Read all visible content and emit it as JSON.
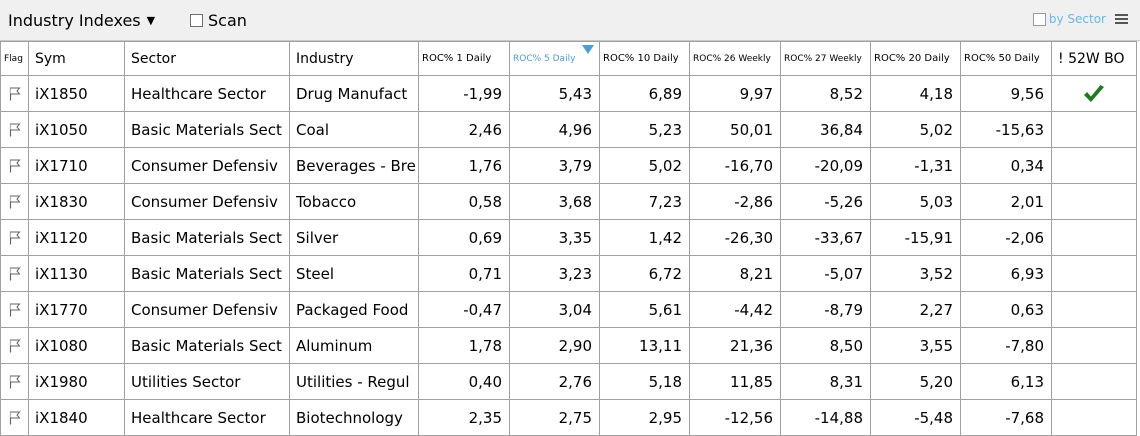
{
  "toolbar": {
    "list_name": "Industry Indexes",
    "scan_label": "Scan",
    "by_sector_label": "by Sector",
    "icons": {
      "dropdown": "caret-down-icon",
      "menu": "hamburger-menu-icon"
    }
  },
  "table": {
    "columns": [
      {
        "key": "flag",
        "label": "Flag"
      },
      {
        "key": "sym",
        "label": "Sym"
      },
      {
        "key": "sector",
        "label": "Sector"
      },
      {
        "key": "industry",
        "label": "Industry"
      },
      {
        "key": "roc1d",
        "label": "ROC% 1 Daily"
      },
      {
        "key": "roc5d",
        "label": "ROC% 5 Daily",
        "sorted": "desc"
      },
      {
        "key": "roc10d",
        "label": "ROC% 10 Daily"
      },
      {
        "key": "roc26w",
        "label": "ROC% 26 Weekly"
      },
      {
        "key": "roc27w",
        "label": "ROC% 27 Weekly"
      },
      {
        "key": "roc20d",
        "label": "ROC% 20 Daily"
      },
      {
        "key": "roc50d",
        "label": "ROC% 50 Daily"
      },
      {
        "key": "bo52w",
        "label": "! 52W BO"
      }
    ],
    "rows": [
      {
        "sym": "iX1850",
        "sector": "Healthcare Sector",
        "industry": "Drug Manufact",
        "roc1d": "-1,99",
        "roc5d": "5,43",
        "roc10d": "6,89",
        "roc26w": "9,97",
        "roc27w": "8,52",
        "roc20d": "4,18",
        "roc50d": "9,56",
        "bo52w": true
      },
      {
        "sym": "iX1050",
        "sector": "Basic Materials Sect",
        "industry": "Coal",
        "roc1d": "2,46",
        "roc5d": "4,96",
        "roc10d": "5,23",
        "roc26w": "50,01",
        "roc27w": "36,84",
        "roc20d": "5,02",
        "roc50d": "-15,63",
        "bo52w": false
      },
      {
        "sym": "iX1710",
        "sector": "Consumer Defensiv",
        "industry": "Beverages - Bre",
        "roc1d": "1,76",
        "roc5d": "3,79",
        "roc10d": "5,02",
        "roc26w": "-16,70",
        "roc27w": "-20,09",
        "roc20d": "-1,31",
        "roc50d": "0,34",
        "bo52w": false
      },
      {
        "sym": "iX1830",
        "sector": "Consumer Defensiv",
        "industry": "Tobacco",
        "roc1d": "0,58",
        "roc5d": "3,68",
        "roc10d": "7,23",
        "roc26w": "-2,86",
        "roc27w": "-5,26",
        "roc20d": "5,03",
        "roc50d": "2,01",
        "bo52w": false
      },
      {
        "sym": "iX1120",
        "sector": "Basic Materials Sect",
        "industry": "Silver",
        "roc1d": "0,69",
        "roc5d": "3,35",
        "roc10d": "1,42",
        "roc26w": "-26,30",
        "roc27w": "-33,67",
        "roc20d": "-15,91",
        "roc50d": "-2,06",
        "bo52w": false
      },
      {
        "sym": "iX1130",
        "sector": "Basic Materials Sect",
        "industry": "Steel",
        "roc1d": "0,71",
        "roc5d": "3,23",
        "roc10d": "6,72",
        "roc26w": "8,21",
        "roc27w": "-5,07",
        "roc20d": "3,52",
        "roc50d": "6,93",
        "bo52w": false
      },
      {
        "sym": "iX1770",
        "sector": "Consumer Defensiv",
        "industry": "Packaged Food",
        "roc1d": "-0,47",
        "roc5d": "3,04",
        "roc10d": "5,61",
        "roc26w": "-4,42",
        "roc27w": "-8,79",
        "roc20d": "2,27",
        "roc50d": "0,63",
        "bo52w": false
      },
      {
        "sym": "iX1080",
        "sector": "Basic Materials Sect",
        "industry": "Aluminum",
        "roc1d": "1,78",
        "roc5d": "2,90",
        "roc10d": "13,11",
        "roc26w": "21,36",
        "roc27w": "8,50",
        "roc20d": "3,55",
        "roc50d": "-7,80",
        "bo52w": false
      },
      {
        "sym": "iX1980",
        "sector": "Utilities Sector",
        "industry": "Utilities - Regul",
        "roc1d": "0,40",
        "roc5d": "2,76",
        "roc10d": "5,18",
        "roc26w": "11,85",
        "roc27w": "8,31",
        "roc20d": "5,20",
        "roc50d": "6,13",
        "bo52w": false
      },
      {
        "sym": "iX1840",
        "sector": "Healthcare Sector",
        "industry": "Biotechnology",
        "roc1d": "2,35",
        "roc5d": "2,75",
        "roc10d": "2,95",
        "roc26w": "-12,56",
        "roc27w": "-14,88",
        "roc20d": "-5,48",
        "roc50d": "-7,68",
        "bo52w": false
      }
    ]
  },
  "colors": {
    "sorted_header": "#4a9fd8",
    "check": "#1f7a1f",
    "by_sector": "#69b8e6"
  }
}
